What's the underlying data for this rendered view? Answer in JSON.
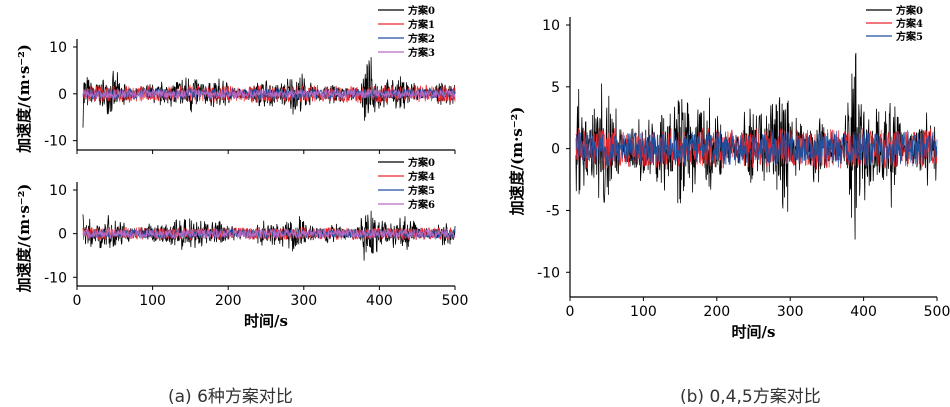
{
  "captions": {
    "a": "(a) 6种方案对比",
    "b": "(b) 0,4,5方案对比"
  },
  "chart_data": [
    {
      "type": "line",
      "xlabel": "",
      "ylabel": "加速度/(m·s⁻²)",
      "xlim": [
        0,
        500
      ],
      "ylim": [
        -12,
        10
      ],
      "yticks": [
        -10,
        0,
        10
      ],
      "series": [
        {
          "name": "方案0",
          "color": "#000000",
          "amp": 4.0
        },
        {
          "name": "方案1",
          "color": "#e8262c",
          "amp": 2.0
        },
        {
          "name": "方案2",
          "color": "#1f4e9c",
          "amp": 1.3
        },
        {
          "name": "方案3",
          "color": "#b86bc4",
          "amp": 1.1
        }
      ]
    },
    {
      "type": "line",
      "xlabel": "时间/s",
      "ylabel": "加速度/(m·s⁻²)",
      "xlim": [
        0,
        500
      ],
      "ylim": [
        -12,
        10
      ],
      "xticks": [
        0,
        100,
        200,
        300,
        400,
        500
      ],
      "yticks": [
        -10,
        0,
        10
      ],
      "series": [
        {
          "name": "方案0",
          "color": "#000000",
          "amp": 4.0
        },
        {
          "name": "方案4",
          "color": "#e8262c",
          "amp": 1.6
        },
        {
          "name": "方案5",
          "color": "#1f4e9c",
          "amp": 1.2
        },
        {
          "name": "方案6",
          "color": "#b86bc4",
          "amp": 1.2
        }
      ]
    },
    {
      "type": "line",
      "xlabel": "时间/s",
      "ylabel": "加速度/(m·s⁻²)",
      "xlim": [
        0,
        500
      ],
      "ylim": [
        -12,
        10
      ],
      "xticks": [
        0,
        100,
        200,
        300,
        400,
        500
      ],
      "yticks": [
        -10,
        -5,
        0,
        5,
        10
      ],
      "series": [
        {
          "name": "方案0",
          "color": "#000000",
          "amp": 4.5
        },
        {
          "name": "方案4",
          "color": "#e8262c",
          "amp": 1.8
        },
        {
          "name": "方案5",
          "color": "#1f4e9c",
          "amp": 1.6
        }
      ]
    }
  ]
}
